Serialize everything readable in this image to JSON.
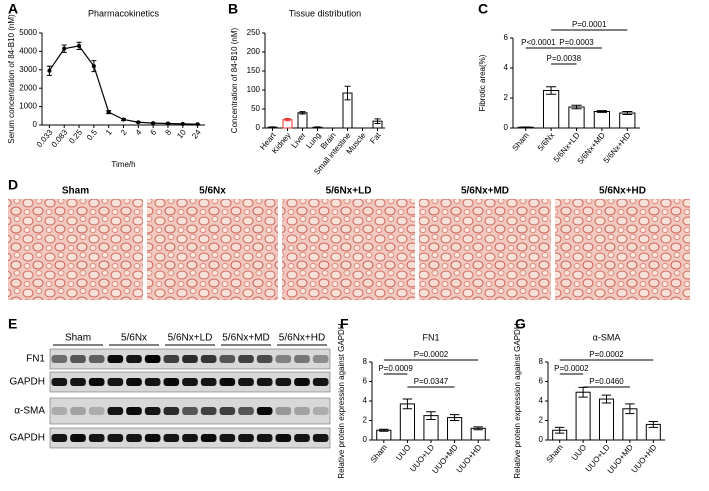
{
  "chart_data": [
    {
      "panel": "A",
      "type": "line",
      "title": "Pharmacokinetics",
      "ylabel": "Serum concentration of 84-B10 (nM)",
      "xlabel": "Time/h",
      "categories": [
        "0.033",
        "0.083",
        "0.25",
        "0.5",
        "1",
        "2",
        "4",
        "6",
        "8",
        "10",
        "24"
      ],
      "values": [
        2950,
        4150,
        4300,
        3200,
        700,
        300,
        150,
        100,
        80,
        60,
        40
      ],
      "errors": [
        250,
        200,
        200,
        300,
        80,
        50,
        30,
        20,
        15,
        15,
        10
      ],
      "ylim": [
        0,
        5000
      ],
      "yticks": [
        0,
        1000,
        2000,
        3000,
        4000,
        5000
      ],
      "color": "#000000"
    },
    {
      "panel": "B",
      "type": "bar",
      "title": "Tissue distribution",
      "ylabel": "Concentration of 84-B10 (nM)",
      "categories": [
        "Heart",
        "Kidney",
        "Liver",
        "Lung",
        "Brain",
        "Small intestine",
        "Muscle",
        "Fat"
      ],
      "values": [
        2,
        22,
        40,
        2,
        0,
        92,
        0,
        18
      ],
      "errors": [
        1,
        3,
        3,
        1,
        0,
        18,
        0,
        6
      ],
      "colors": [
        "#000000",
        "#e8312f",
        "#000000",
        "#000000",
        "#000000",
        "#000000",
        "#000000",
        "#000000"
      ],
      "ylim": [
        0,
        250
      ],
      "yticks": [
        0,
        50,
        100,
        150,
        200,
        250
      ]
    },
    {
      "panel": "C",
      "type": "bar",
      "ylabel": "Fibrotic area(%)",
      "categories": [
        "Sham",
        "5/6Nx",
        "5/6Nx+LD",
        "5/6Nx+MD",
        "5/6Nx+HD"
      ],
      "values": [
        0.05,
        2.5,
        1.4,
        1.1,
        1.0
      ],
      "errors": [
        0.02,
        0.25,
        0.12,
        0.06,
        0.1
      ],
      "color": "#000000",
      "ylim": [
        0,
        6
      ],
      "yticks": [
        0,
        2,
        4,
        6
      ],
      "annotations": [
        "P<0.0001",
        "P=0.0038",
        "P=0.0003",
        "P=0.0001"
      ]
    },
    {
      "panel": "F",
      "type": "bar",
      "title": "FN1",
      "ylabel": "Relative protein expression against GAPDH",
      "categories": [
        "Sham",
        "UUO",
        "UUO+LD",
        "UUO+MD",
        "UUO+HD"
      ],
      "values": [
        1.0,
        3.7,
        2.5,
        2.3,
        1.2
      ],
      "errors": [
        0.1,
        0.5,
        0.4,
        0.3,
        0.15
      ],
      "color": "#000000",
      "ylim": [
        0,
        8
      ],
      "yticks": [
        0,
        2,
        4,
        6,
        8
      ],
      "annotations": [
        "P=0.0009",
        "P=0.0347",
        "P=0.0002"
      ]
    },
    {
      "panel": "G",
      "type": "bar",
      "title": "α-SMA",
      "ylabel": "Relative protein expression against GAPDH",
      "categories": [
        "Sham",
        "UUO",
        "UUO+LD",
        "UUO+MD",
        "UUO+HD"
      ],
      "values": [
        1.0,
        4.9,
        4.2,
        3.2,
        1.6
      ],
      "errors": [
        0.3,
        0.5,
        0.4,
        0.5,
        0.3
      ],
      "color": "#000000",
      "ylim": [
        0,
        8
      ],
      "yticks": [
        0,
        2,
        4,
        6,
        8
      ],
      "annotations": [
        "P=0.0002",
        "P=0.0460",
        "P=0.0002"
      ]
    }
  ],
  "histology": {
    "panel": "D",
    "labels": [
      "Sham",
      "5/6Nx",
      "5/6Nx+LD",
      "5/6Nx+MD",
      "5/6Nx+HD"
    ]
  },
  "western_blot": {
    "panel": "E",
    "groups": [
      "Sham",
      "5/6Nx",
      "5/6Nx+LD",
      "5/6Nx+MD",
      "5/6Nx+HD"
    ],
    "rows": [
      "FN1",
      "GAPDH",
      "α-SMA",
      "GAPDH"
    ]
  }
}
